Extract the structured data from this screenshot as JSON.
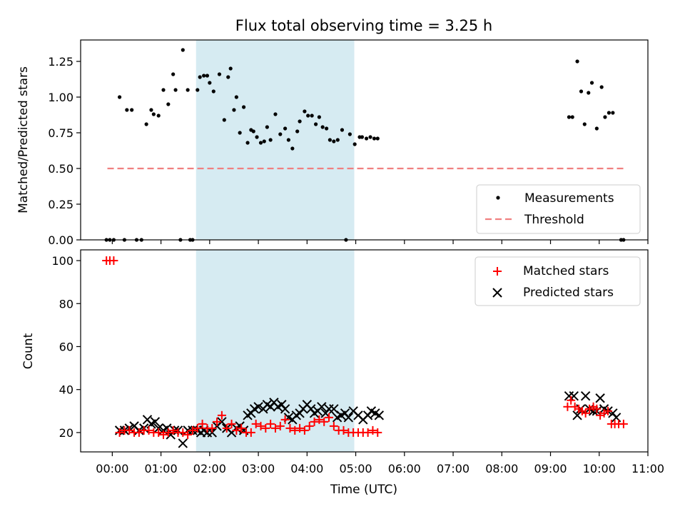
{
  "title": "Flux total observing time = 3.25 h",
  "colors": {
    "measurements": "#000000",
    "threshold": "#f08080",
    "matched": "#ff0000",
    "predicted": "#000000",
    "shade": "#add8e6"
  },
  "chart_data": [
    {
      "type": "scatter",
      "ylabel": "Matched/Predicted stars",
      "xlim": [
        -0.65,
        11.0
      ],
      "ylim": [
        0,
        1.4
      ],
      "yticks": [
        0.0,
        0.25,
        0.5,
        0.75,
        1.0,
        1.25
      ],
      "ytick_labels": [
        "0.00",
        "0.25",
        "0.50",
        "0.75",
        "1.00",
        "1.25"
      ],
      "shaded_interval": [
        1.72,
        4.97
      ],
      "threshold": {
        "label": "Threshold",
        "value": 0.5,
        "x_range": [
          -0.1,
          10.5
        ]
      },
      "legend": [
        "Measurements",
        "Threshold"
      ],
      "legend_position": "lower-right",
      "series": [
        {
          "name": "Measurements",
          "x": [
            -0.12,
            -0.05,
            0.03,
            0.15,
            0.25,
            0.3,
            0.4,
            0.5,
            0.6,
            0.7,
            0.8,
            0.85,
            0.95,
            1.05,
            1.15,
            1.25,
            1.3,
            1.4,
            1.45,
            1.55,
            1.6,
            1.65,
            1.75,
            1.8,
            1.88,
            1.95,
            2.0,
            2.08,
            2.2,
            2.3,
            2.38,
            2.43,
            2.5,
            2.55,
            2.62,
            2.7,
            2.78,
            2.85,
            2.9,
            2.97,
            3.05,
            3.12,
            3.18,
            3.25,
            3.35,
            3.45,
            3.55,
            3.62,
            3.7,
            3.8,
            3.85,
            3.95,
            4.02,
            4.1,
            4.18,
            4.25,
            4.32,
            4.4,
            4.47,
            4.55,
            4.63,
            4.72,
            4.8,
            4.88,
            4.98,
            5.08,
            5.13,
            5.22,
            5.3,
            5.38,
            5.45,
            9.38,
            9.45,
            9.55,
            9.63,
            9.7,
            9.78,
            9.85,
            9.95,
            10.05,
            10.12,
            10.2,
            10.28,
            10.45,
            10.5
          ],
          "y": [
            0,
            0,
            0,
            1.0,
            0,
            0.91,
            0.91,
            0,
            0,
            0.81,
            0.91,
            0.88,
            0.87,
            1.05,
            0.95,
            1.16,
            1.05,
            0,
            1.33,
            1.05,
            0,
            0,
            1.05,
            1.14,
            1.15,
            1.15,
            1.1,
            1.04,
            1.16,
            0.84,
            1.14,
            1.2,
            0.91,
            1.0,
            0.75,
            0.93,
            0.68,
            0.77,
            0.76,
            0.72,
            0.68,
            0.69,
            0.79,
            0.7,
            0.88,
            0.74,
            0.78,
            0.7,
            0.64,
            0.76,
            0.83,
            0.9,
            0.87,
            0.87,
            0.81,
            0.86,
            0.79,
            0.78,
            0.7,
            0.69,
            0.7,
            0.77,
            0,
            0.74,
            0.67,
            0.72,
            0.72,
            0.71,
            0.72,
            0.71,
            0.71,
            0.86,
            0.86,
            1.25,
            1.04,
            0.81,
            1.03,
            1.1,
            0.78,
            1.07,
            0.86,
            0.89,
            0.89,
            0,
            0
          ]
        }
      ]
    },
    {
      "type": "scatter",
      "ylabel": "Count",
      "xlabel": "Time (UTC)",
      "xlim": [
        -0.65,
        11.0
      ],
      "ylim": [
        11,
        105
      ],
      "yticks": [
        20,
        40,
        60,
        80,
        100
      ],
      "ytick_labels": [
        "20",
        "40",
        "60",
        "80",
        "100"
      ],
      "xticks": [
        0,
        1,
        2,
        3,
        4,
        5,
        6,
        7,
        8,
        9,
        10,
        11
      ],
      "xtick_labels": [
        "00:00",
        "01:00",
        "02:00",
        "03:00",
        "04:00",
        "05:00",
        "06:00",
        "07:00",
        "08:00",
        "09:00",
        "10:00",
        "11:00"
      ],
      "shaded_interval": [
        1.72,
        4.97
      ],
      "legend": [
        "Matched stars",
        "Predicted stars"
      ],
      "legend_position": "upper-right",
      "series": [
        {
          "name": "Matched stars",
          "x": [
            -0.12,
            -0.05,
            0.03,
            0.15,
            0.25,
            0.35,
            0.45,
            0.55,
            0.65,
            0.75,
            0.85,
            0.95,
            1.05,
            1.15,
            1.25,
            1.35,
            1.45,
            1.55,
            1.65,
            1.75,
            1.85,
            1.95,
            2.05,
            2.15,
            2.25,
            2.35,
            2.45,
            2.55,
            2.65,
            2.75,
            2.85,
            2.95,
            3.05,
            3.15,
            3.25,
            3.35,
            3.45,
            3.55,
            3.65,
            3.75,
            3.85,
            3.95,
            4.05,
            4.15,
            4.25,
            4.35,
            4.45,
            4.55,
            4.65,
            4.75,
            4.85,
            4.95,
            5.05,
            5.15,
            5.25,
            5.35,
            5.45,
            9.35,
            9.42,
            9.5,
            9.58,
            9.65,
            9.72,
            9.8,
            9.88,
            9.95,
            10.02,
            10.1,
            10.18,
            10.25,
            10.32,
            10.4,
            10.5
          ],
          "y": [
            100,
            100,
            100,
            20,
            21,
            21,
            20,
            20,
            21,
            21,
            20,
            20,
            19,
            20,
            21,
            20,
            20,
            19,
            21,
            22,
            24,
            22,
            22,
            25,
            28,
            22,
            24,
            21,
            22,
            20,
            20,
            24,
            23,
            22,
            24,
            22,
            23,
            26,
            22,
            21,
            22,
            21,
            23,
            25,
            26,
            25,
            27,
            23,
            21,
            21,
            20,
            20,
            20,
            20,
            20,
            21,
            20,
            32,
            35,
            32,
            31,
            30,
            29,
            31,
            32,
            31,
            28,
            29,
            30,
            24,
            24,
            24,
            24
          ]
        },
        {
          "name": "Predicted stars",
          "x": [
            0.15,
            0.25,
            0.35,
            0.45,
            0.55,
            0.65,
            0.72,
            0.8,
            0.88,
            0.95,
            1.05,
            1.12,
            1.2,
            1.28,
            1.35,
            1.45,
            1.55,
            1.65,
            1.75,
            1.82,
            1.88,
            1.95,
            2.05,
            2.15,
            2.25,
            2.35,
            2.45,
            2.55,
            2.62,
            2.7,
            2.78,
            2.85,
            2.92,
            3.0,
            3.1,
            3.18,
            3.25,
            3.32,
            3.4,
            3.48,
            3.55,
            3.62,
            3.7,
            3.78,
            3.85,
            3.92,
            4.0,
            4.08,
            4.15,
            4.22,
            4.3,
            4.38,
            4.45,
            4.55,
            4.62,
            4.7,
            4.78,
            4.85,
            4.95,
            5.05,
            5.15,
            5.25,
            5.32,
            5.4,
            5.48,
            9.38,
            9.48,
            9.55,
            9.62,
            9.72,
            9.8,
            9.88,
            9.95,
            10.02,
            10.1,
            10.18,
            10.28,
            10.35
          ],
          "y": [
            21,
            21,
            22,
            23,
            21,
            22,
            26,
            24,
            25,
            22,
            21,
            22,
            19,
            21,
            21,
            15,
            21,
            21,
            21,
            20,
            21,
            20,
            20,
            23,
            25,
            22,
            20,
            22,
            23,
            21,
            28,
            29,
            31,
            32,
            31,
            33,
            32,
            34,
            32,
            33,
            31,
            27,
            26,
            28,
            29,
            31,
            33,
            31,
            29,
            30,
            32,
            29,
            31,
            31,
            27,
            28,
            29,
            27,
            30,
            28,
            26,
            28,
            30,
            29,
            28,
            37,
            37,
            28,
            31,
            37,
            31,
            30,
            30,
            36,
            31,
            30,
            29,
            27
          ]
        }
      ]
    }
  ]
}
